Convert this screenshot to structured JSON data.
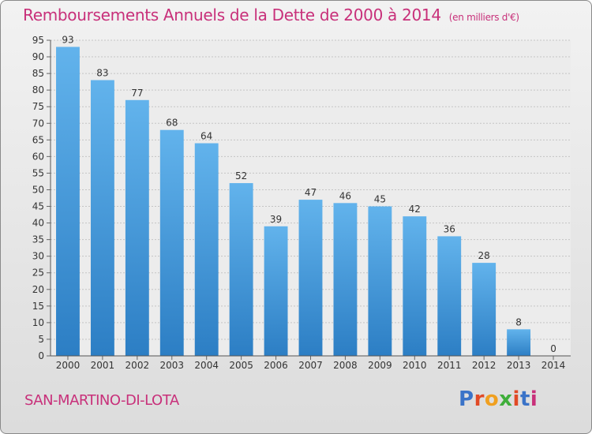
{
  "header": {
    "title": "Remboursements Annuels de la Dette de 2000 à 2014",
    "unit": "(en milliers d'€)"
  },
  "footer": {
    "commune": "SAN-MARTINO-DI-LOTA",
    "logo_text": "Proxiti"
  },
  "colors": {
    "title": "#c8307a",
    "bar_light": "#62b3ec",
    "bar_dark": "#2c7ec4",
    "logo": [
      "#3a73c8",
      "#e14a26",
      "#f0a020",
      "#3fae3a",
      "#e14a26",
      "#3a73c8",
      "#c8307a"
    ]
  },
  "chart_data": {
    "type": "bar",
    "title": "Remboursements Annuels de la Dette de 2000 à 2014",
    "subtitle": "(en milliers d'€)",
    "categories": [
      "2000",
      "2001",
      "2002",
      "2003",
      "2004",
      "2005",
      "2006",
      "2007",
      "2008",
      "2009",
      "2010",
      "2011",
      "2012",
      "2013",
      "2014"
    ],
    "values": [
      93,
      83,
      77,
      68,
      64,
      52,
      39,
      47,
      46,
      45,
      42,
      36,
      28,
      8,
      0
    ],
    "ylim": [
      0,
      95
    ],
    "ytick_step": 5,
    "grid": true
  }
}
